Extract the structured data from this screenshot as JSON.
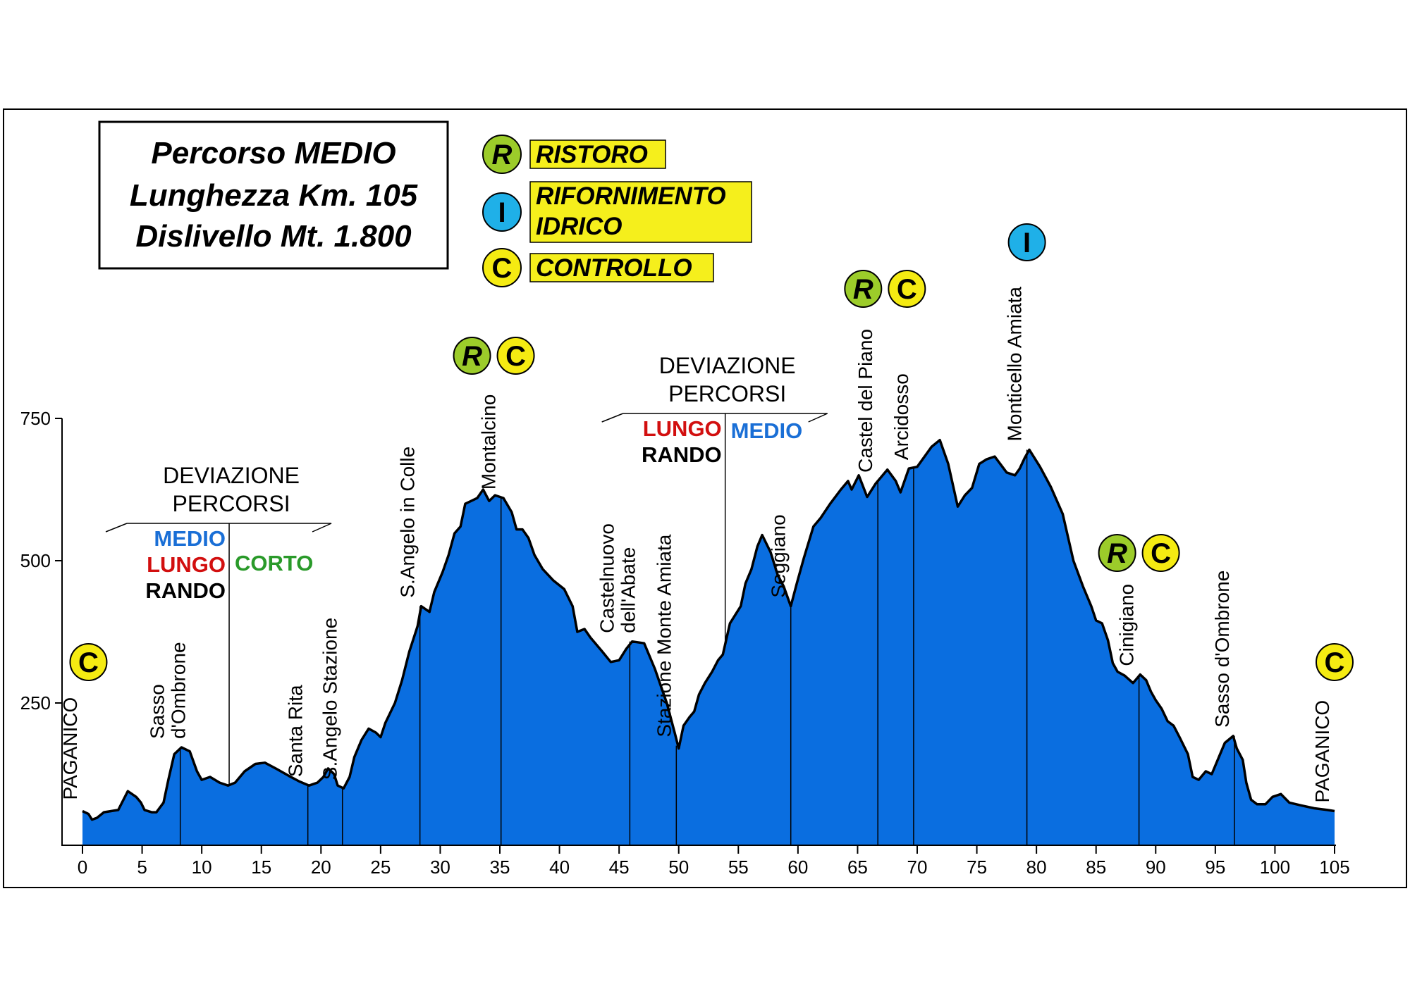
{
  "info_box": {
    "line1": "Percorso MEDIO",
    "line2": "Lunghezza Km. 105",
    "line3": "Dislivello Mt. 1.800"
  },
  "legend": [
    {
      "letter": "R",
      "lines": [
        "RISTORO"
      ],
      "color": "#9ccc2a",
      "italic": true
    },
    {
      "letter": "I",
      "lines": [
        "RIFORNIMENTO",
        "IDRICO"
      ],
      "color": "#1fb0e8",
      "italic": false
    },
    {
      "letter": "C",
      "lines": [
        "CONTROLLO"
      ],
      "color": "#f5eb12",
      "italic": false
    }
  ],
  "chart_data": {
    "type": "area",
    "fill_color": "#0a6ee0",
    "xlim": [
      0,
      105
    ],
    "ylim": [
      0,
      750
    ],
    "xticks": [
      0,
      5,
      10,
      15,
      20,
      25,
      30,
      35,
      40,
      45,
      50,
      55,
      60,
      65,
      70,
      75,
      80,
      85,
      90,
      95,
      100,
      105
    ],
    "yticks": [
      250,
      500,
      750
    ],
    "profile": [
      [
        0,
        60
      ],
      [
        0.5,
        55
      ],
      [
        0.8,
        45
      ],
      [
        1.2,
        48
      ],
      [
        1.8,
        58
      ],
      [
        3,
        62
      ],
      [
        3.8,
        95
      ],
      [
        4.5,
        85
      ],
      [
        4.9,
        75
      ],
      [
        5.2,
        62
      ],
      [
        5.8,
        58
      ],
      [
        6.2,
        58
      ],
      [
        6.8,
        75
      ],
      [
        7.2,
        115
      ],
      [
        7.7,
        160
      ],
      [
        8.3,
        172
      ],
      [
        9,
        165
      ],
      [
        9.6,
        130
      ],
      [
        10,
        115
      ],
      [
        10.7,
        120
      ],
      [
        11.5,
        110
      ],
      [
        12.2,
        105
      ],
      [
        12.8,
        110
      ],
      [
        13.6,
        130
      ],
      [
        14.5,
        143
      ],
      [
        15.3,
        145
      ],
      [
        16.2,
        135
      ],
      [
        17.3,
        122
      ],
      [
        18.2,
        112
      ],
      [
        19,
        105
      ],
      [
        19.7,
        110
      ],
      [
        20.2,
        120
      ],
      [
        20.6,
        135
      ],
      [
        21.1,
        125
      ],
      [
        21.4,
        105
      ],
      [
        21.9,
        100
      ],
      [
        22.4,
        120
      ],
      [
        22.8,
        155
      ],
      [
        23.4,
        185
      ],
      [
        24,
        205
      ],
      [
        24.6,
        198
      ],
      [
        25,
        190
      ],
      [
        25.4,
        215
      ],
      [
        26.2,
        250
      ],
      [
        26.8,
        290
      ],
      [
        27.4,
        340
      ],
      [
        28.1,
        385
      ],
      [
        28.4,
        420
      ],
      [
        29.1,
        410
      ],
      [
        29.5,
        445
      ],
      [
        30.2,
        480
      ],
      [
        30.7,
        510
      ],
      [
        31.2,
        548
      ],
      [
        31.7,
        560
      ],
      [
        32.1,
        600
      ],
      [
        32.6,
        605
      ],
      [
        33.1,
        610
      ],
      [
        33.6,
        625
      ],
      [
        34.1,
        605
      ],
      [
        34.6,
        615
      ],
      [
        35.3,
        610
      ],
      [
        36,
        585
      ],
      [
        36.4,
        555
      ],
      [
        36.9,
        555
      ],
      [
        37.4,
        540
      ],
      [
        37.9,
        510
      ],
      [
        38.6,
        485
      ],
      [
        39.5,
        465
      ],
      [
        40.4,
        450
      ],
      [
        41.1,
        420
      ],
      [
        41.5,
        375
      ],
      [
        42.1,
        380
      ],
      [
        42.6,
        365
      ],
      [
        43.6,
        340
      ],
      [
        44.3,
        322
      ],
      [
        45,
        325
      ],
      [
        45.6,
        345
      ],
      [
        46.1,
        358
      ],
      [
        47.1,
        355
      ],
      [
        48,
        310
      ],
      [
        49,
        250
      ],
      [
        49.7,
        195
      ],
      [
        50,
        170
      ],
      [
        50.4,
        210
      ],
      [
        50.9,
        225
      ],
      [
        51.3,
        235
      ],
      [
        51.7,
        265
      ],
      [
        52.2,
        285
      ],
      [
        52.8,
        305
      ],
      [
        53.3,
        325
      ],
      [
        53.7,
        335
      ],
      [
        54.3,
        390
      ],
      [
        55.2,
        420
      ],
      [
        55.6,
        460
      ],
      [
        56.1,
        485
      ],
      [
        56.6,
        525
      ],
      [
        57,
        545
      ],
      [
        57.7,
        515
      ],
      [
        58.3,
        475
      ],
      [
        58.8,
        455
      ],
      [
        59.4,
        420
      ],
      [
        59.9,
        460
      ],
      [
        60.5,
        505
      ],
      [
        61.3,
        560
      ],
      [
        61.9,
        575
      ],
      [
        62.7,
        600
      ],
      [
        63.6,
        625
      ],
      [
        64.2,
        640
      ],
      [
        64.5,
        625
      ],
      [
        65.1,
        650
      ],
      [
        65.8,
        612
      ],
      [
        66.5,
        635
      ],
      [
        67.5,
        660
      ],
      [
        68.2,
        640
      ],
      [
        68.6,
        620
      ],
      [
        69.3,
        662
      ],
      [
        70,
        665
      ],
      [
        71.2,
        700
      ],
      [
        71.9,
        712
      ],
      [
        72.6,
        670
      ],
      [
        73.4,
        595
      ],
      [
        74,
        615
      ],
      [
        74.6,
        628
      ],
      [
        75.2,
        670
      ],
      [
        75.8,
        678
      ],
      [
        76.5,
        683
      ],
      [
        77.5,
        655
      ],
      [
        78.2,
        650
      ],
      [
        78.6,
        662
      ],
      [
        79,
        680
      ],
      [
        79.4,
        695
      ],
      [
        80.3,
        665
      ],
      [
        81.2,
        630
      ],
      [
        82.2,
        582
      ],
      [
        83.1,
        500
      ],
      [
        83.9,
        455
      ],
      [
        84.6,
        420
      ],
      [
        85,
        395
      ],
      [
        85.5,
        390
      ],
      [
        86,
        360
      ],
      [
        86.4,
        320
      ],
      [
        86.8,
        305
      ],
      [
        87.4,
        298
      ],
      [
        88.1,
        285
      ],
      [
        88.7,
        300
      ],
      [
        89.2,
        290
      ],
      [
        89.6,
        270
      ],
      [
        90,
        255
      ],
      [
        90.5,
        240
      ],
      [
        91,
        218
      ],
      [
        91.5,
        210
      ],
      [
        92,
        190
      ],
      [
        92.7,
        160
      ],
      [
        93.1,
        120
      ],
      [
        93.6,
        115
      ],
      [
        94.2,
        130
      ],
      [
        94.7,
        125
      ],
      [
        95.3,
        155
      ],
      [
        95.8,
        180
      ],
      [
        96.5,
        192
      ],
      [
        96.8,
        170
      ],
      [
        97.3,
        150
      ],
      [
        97.6,
        110
      ],
      [
        98,
        80
      ],
      [
        98.5,
        72
      ],
      [
        99.2,
        72
      ],
      [
        99.8,
        85
      ],
      [
        100.5,
        90
      ],
      [
        101.2,
        75
      ],
      [
        102.2,
        70
      ],
      [
        103.3,
        65
      ],
      [
        104.4,
        62
      ],
      [
        105,
        60
      ]
    ],
    "places": [
      {
        "km": 0,
        "name": "PAGANICO",
        "alt": 65,
        "line": false
      },
      {
        "km": 8.2,
        "name": "Sasso d'Ombrone",
        "label_lines": [
          "Sasso",
          "d'Ombrone"
        ],
        "alt": 172,
        "line": true
      },
      {
        "km": 18.9,
        "name": "Santa Rita",
        "alt": 105,
        "line": true
      },
      {
        "km": 21.8,
        "name": "S.Angelo Stazione",
        "alt": 100,
        "line": true
      },
      {
        "km": 28.3,
        "name": "S.Angelo in Colle",
        "alt": 420,
        "line": true
      },
      {
        "km": 35.1,
        "name": "Montalcino",
        "alt": 610,
        "line": true
      },
      {
        "km": 45.9,
        "name": "Castelnuovo dell'Abate",
        "label_lines": [
          "Castelnuovo",
          "dell'Abate"
        ],
        "alt": 358,
        "line": true
      },
      {
        "km": 49.8,
        "name": "Stazione Monte Amiata",
        "alt": 175,
        "line": true
      },
      {
        "km": 59.4,
        "name": "Seggiano",
        "alt": 420,
        "line": true
      },
      {
        "km": 66.7,
        "name": "Castel del Piano",
        "alt": 640,
        "line": true
      },
      {
        "km": 69.7,
        "name": "Arcidosso",
        "alt": 662,
        "line": true
      },
      {
        "km": 79.2,
        "name": "Monticello Amiata",
        "alt": 695,
        "line": true
      },
      {
        "km": 88.6,
        "name": "Cinigiano",
        "alt": 300,
        "line": true
      },
      {
        "km": 96.6,
        "name": "Sasso d'Ombrone",
        "alt": 192,
        "line": true
      },
      {
        "km": 105,
        "name": "PAGANICO",
        "alt": 60,
        "line": false
      }
    ],
    "deviations": [
      {
        "km": 12.3,
        "title_lines": [
          "DEVIAZIONE",
          "PERCORSI"
        ],
        "left_routes": [
          {
            "name": "MEDIO",
            "color": "#1a6fd6"
          },
          {
            "name": "LUNGO",
            "color": "#d20f0f"
          },
          {
            "name": "RANDO",
            "color": "#000000"
          }
        ],
        "right_routes": [
          {
            "name": "CORTO",
            "color": "#2a9a2a"
          }
        ]
      },
      {
        "km": 53.9,
        "title_lines": [
          "DEVIAZIONE",
          "PERCORSI"
        ],
        "left_routes": [
          {
            "name": "LUNGO",
            "color": "#d20f0f"
          },
          {
            "name": "RANDO",
            "color": "#000000"
          }
        ],
        "right_routes": [
          {
            "name": "MEDIO",
            "color": "#1a6fd6"
          }
        ]
      }
    ],
    "markers": [
      {
        "km": 0.5,
        "letters": [
          "C"
        ]
      },
      {
        "km": 34.5,
        "letters": [
          "R",
          "C"
        ]
      },
      {
        "km": 67.3,
        "letters": [
          "R",
          "C"
        ]
      },
      {
        "km": 79.2,
        "letters": [
          "I"
        ]
      },
      {
        "km": 88.6,
        "letters": [
          "R",
          "C"
        ]
      },
      {
        "km": 105,
        "letters": [
          "C"
        ]
      }
    ]
  }
}
